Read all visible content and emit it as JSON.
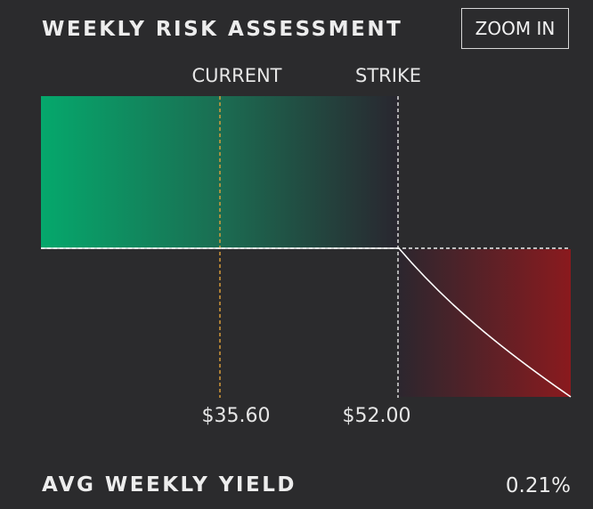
{
  "header": {
    "title": "WEEKLY RISK ASSESSMENT",
    "zoom_button_label": "ZOOM IN"
  },
  "chart_data": {
    "type": "area",
    "title": "",
    "xlabel": "",
    "ylabel": "",
    "markers": [
      {
        "label": "CURRENT",
        "value": 35.6,
        "value_label": "$35.60",
        "color": "#e2a23a"
      },
      {
        "label": "STRIKE",
        "value": 52.0,
        "value_label": "$52.00",
        "color": "#e8e8e8"
      }
    ],
    "colors": {
      "profit": "#05a86c",
      "loss": "#8a1a1e",
      "payoff_line": "#ffffff"
    },
    "grid": false
  },
  "footer": {
    "label": "AVG WEEKLY YIELD",
    "value": "0.21%"
  }
}
